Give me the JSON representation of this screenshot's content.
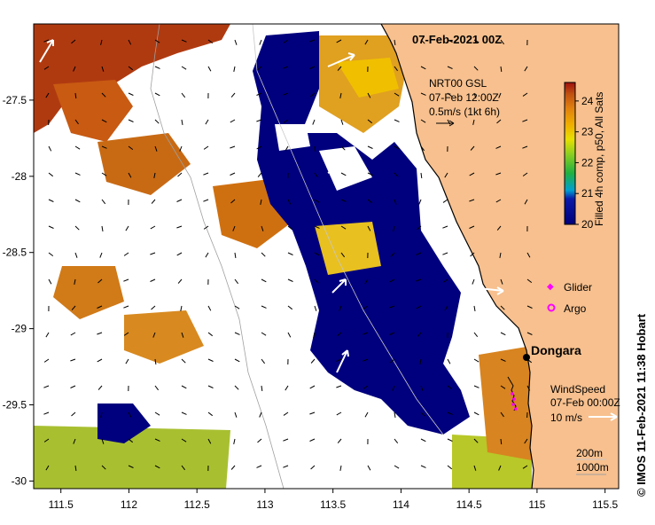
{
  "title": "07-Feb-2021 00Z",
  "credit": "© IMOS 11-Feb-2021 11:38 Hobart",
  "axes": {
    "x_ticks": [
      "111.5",
      "112",
      "112.5",
      "113",
      "113.5",
      "114",
      "114.5",
      "115",
      "115.5"
    ],
    "y_ticks": [
      "-27.5",
      "-28",
      "-28.5",
      "-29",
      "-29.5",
      "-30"
    ],
    "x_range": [
      111.3,
      115.6
    ],
    "y_range": [
      -30.05,
      -27.0
    ]
  },
  "current_legend": {
    "line1": "NRT00 GSL",
    "line2": "07-Feb 12:00Z",
    "line3": "0.5m/s (1kt 6h)"
  },
  "colorbar": {
    "label": "Filled 4h comp, p50, All Sats",
    "ticks": [
      "24",
      "23",
      "22",
      "21",
      "20"
    ],
    "min": 20,
    "max": 24.6
  },
  "legend": {
    "glider": "Glider",
    "argo": "Argo"
  },
  "place": {
    "name": "Dongara",
    "lon": 114.93,
    "lat": -29.25
  },
  "wind_legend": {
    "line1": "WindSpeed",
    "line2": "07-Feb 00:00Z",
    "line3": "10 m/s"
  },
  "bathy_legend": {
    "line1": "200m",
    "line2": "1000m"
  },
  "colors": {
    "land": "#f7c08e",
    "cold": "#000080",
    "warm": "#d77a0a",
    "glider": "#ff00ff",
    "argo": "#ff00ff"
  }
}
